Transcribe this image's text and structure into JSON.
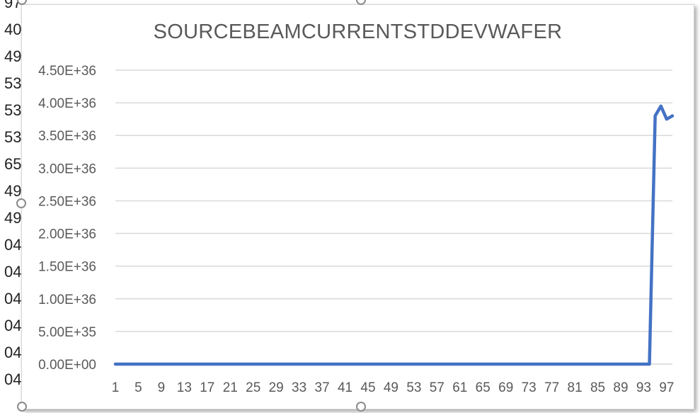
{
  "sheet": {
    "row_labels": [
      "97",
      "40",
      "49",
      "53",
      "53",
      "53",
      "65",
      "49",
      "49",
      "04",
      "04",
      "04",
      "04",
      "04",
      "04"
    ]
  },
  "chart_data": {
    "type": "line",
    "title": "SOURCEBEAMCURRENTSTDDEVWAFER",
    "xlabel": "",
    "ylabel": "",
    "x_tick_labels": [
      "1",
      "5",
      "9",
      "13",
      "17",
      "21",
      "25",
      "29",
      "33",
      "37",
      "41",
      "45",
      "49",
      "53",
      "57",
      "61",
      "65",
      "69",
      "73",
      "77",
      "81",
      "85",
      "89",
      "93",
      "97"
    ],
    "y_tick_labels": [
      "0.00E+00",
      "5.00E+35",
      "1.00E+36",
      "1.50E+36",
      "2.00E+36",
      "2.50E+36",
      "3.00E+36",
      "3.50E+36",
      "4.00E+36",
      "4.50E+36"
    ],
    "ylim": [
      0,
      4.5e+36
    ],
    "xlim": [
      1,
      98
    ],
    "grid": true,
    "legend": "none",
    "series": [
      {
        "color": "#4472C4",
        "x": [
          1,
          2,
          3,
          4,
          5,
          6,
          7,
          8,
          9,
          10,
          11,
          12,
          13,
          14,
          15,
          16,
          17,
          18,
          19,
          20,
          21,
          22,
          23,
          24,
          25,
          26,
          27,
          28,
          29,
          30,
          31,
          32,
          33,
          34,
          35,
          36,
          37,
          38,
          39,
          40,
          41,
          42,
          43,
          44,
          45,
          46,
          47,
          48,
          49,
          50,
          51,
          52,
          53,
          54,
          55,
          56,
          57,
          58,
          59,
          60,
          61,
          62,
          63,
          64,
          65,
          66,
          67,
          68,
          69,
          70,
          71,
          72,
          73,
          74,
          75,
          76,
          77,
          78,
          79,
          80,
          81,
          82,
          83,
          84,
          85,
          86,
          87,
          88,
          89,
          90,
          91,
          92,
          93,
          94,
          95,
          96,
          97,
          98
        ],
        "values": [
          0,
          0,
          0,
          0,
          0,
          0,
          0,
          0,
          0,
          0,
          0,
          0,
          0,
          0,
          0,
          0,
          0,
          0,
          0,
          0,
          0,
          0,
          0,
          0,
          0,
          0,
          0,
          0,
          0,
          0,
          0,
          0,
          0,
          0,
          0,
          0,
          0,
          0,
          0,
          0,
          0,
          0,
          0,
          0,
          0,
          0,
          0,
          0,
          0,
          0,
          0,
          0,
          0,
          0,
          0,
          0,
          0,
          0,
          0,
          0,
          0,
          0,
          0,
          0,
          0,
          0,
          0,
          0,
          0,
          0,
          0,
          0,
          0,
          0,
          0,
          0,
          0,
          0,
          0,
          0,
          0,
          0,
          0,
          0,
          0,
          0,
          0,
          0,
          0,
          0,
          0,
          0,
          0,
          0,
          3.8e+36,
          3.95e+36,
          3.75e+36,
          3.8e+36
        ]
      }
    ]
  },
  "colors": {
    "series": "#4472C4",
    "grid": "#d9d9d9",
    "text": "#595959"
  }
}
